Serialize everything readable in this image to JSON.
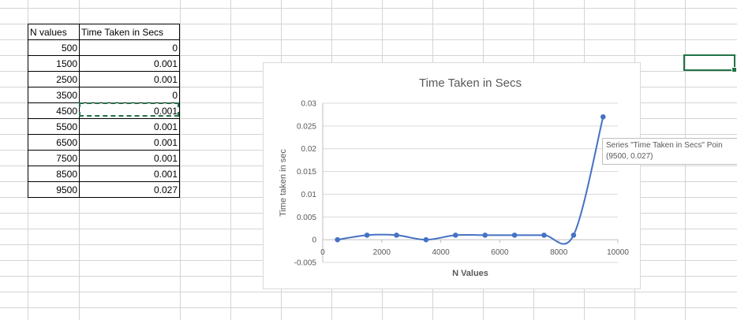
{
  "table": {
    "headers": [
      "N values",
      "Time Taken in Secs"
    ],
    "rows": [
      [
        "500",
        "0"
      ],
      [
        "1500",
        "0.001"
      ],
      [
        "2500",
        "0.001"
      ],
      [
        "3500",
        "0"
      ],
      [
        "4500",
        "0.001"
      ],
      [
        "5500",
        "0.001"
      ],
      [
        "6500",
        "0.001"
      ],
      [
        "7500",
        "0.001"
      ],
      [
        "8500",
        "0.001"
      ],
      [
        "9500",
        "0.027"
      ]
    ]
  },
  "chart_data": {
    "type": "scatter",
    "title": "Time Taken in Secs",
    "xlabel": "N Values",
    "ylabel": "Time taken in sec",
    "x": [
      500,
      1500,
      2500,
      3500,
      4500,
      5500,
      6500,
      7500,
      8500,
      9500
    ],
    "y": [
      0,
      0.001,
      0.001,
      0,
      0.001,
      0.001,
      0.001,
      0.001,
      0.001,
      0.027
    ],
    "xlim": [
      0,
      10000
    ],
    "ylim": [
      -0.005,
      0.03
    ],
    "xticks": [
      "0",
      "2000",
      "4000",
      "6000",
      "8000",
      "10000"
    ],
    "yticks": [
      "-0.005",
      "0",
      "0.005",
      "0.01",
      "0.015",
      "0.02",
      "0.025",
      "0.03"
    ],
    "smoothed": true,
    "color": "#4472c4"
  },
  "tooltip": {
    "line1": "Series \"Time Taken in Secs\" Poin",
    "line2": "(9500, 0.027)"
  },
  "colors": {
    "selection": "#217346",
    "grid": "#d4d4d4"
  }
}
